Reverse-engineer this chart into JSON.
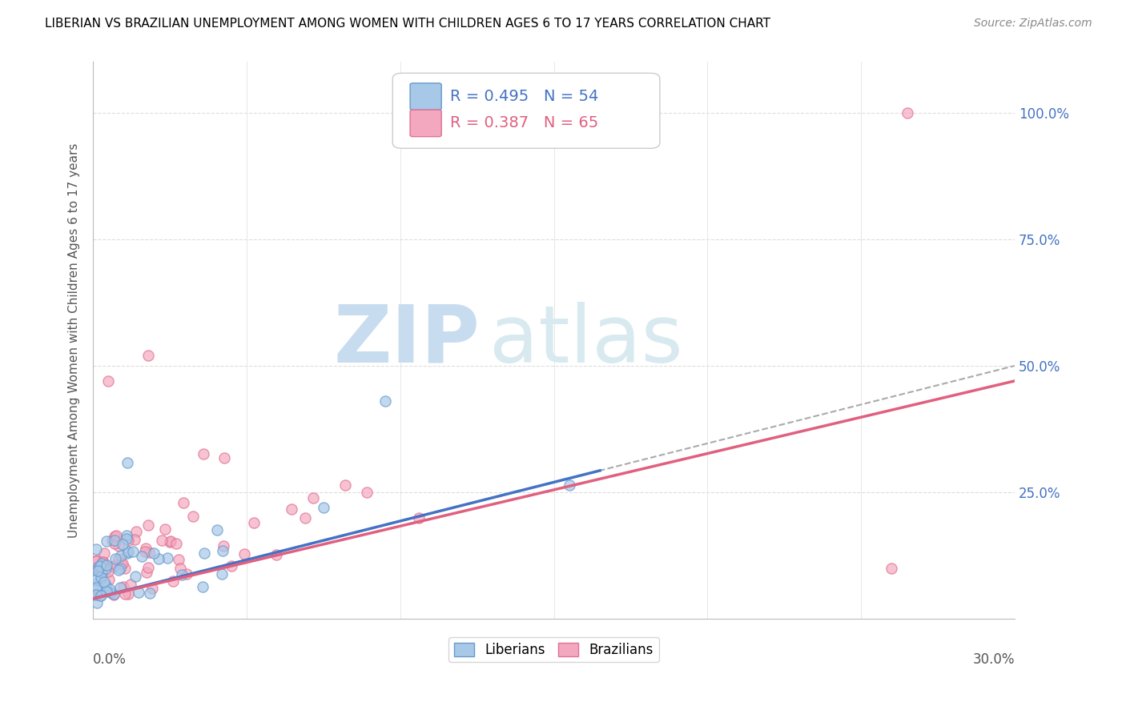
{
  "title": "LIBERIAN VS BRAZILIAN UNEMPLOYMENT AMONG WOMEN WITH CHILDREN AGES 6 TO 17 YEARS CORRELATION CHART",
  "source": "Source: ZipAtlas.com",
  "ylabel": "Unemployment Among Women with Children Ages 6 to 17 years",
  "xlim": [
    0.0,
    0.3
  ],
  "ylim": [
    0.0,
    1.1
  ],
  "liberians_R": 0.495,
  "liberians_N": 54,
  "brazilians_R": 0.387,
  "brazilians_N": 65,
  "liberian_color": "#A8C8E8",
  "liberian_edge": "#6699CC",
  "brazilian_color": "#F4A8C0",
  "brazilian_edge": "#E07090",
  "line_liberian_solid": "#4472C4",
  "line_liberian_dashed": "#AAAAAA",
  "line_brazilian": "#E06080",
  "watermark_zip": "ZIP",
  "watermark_atlas": "atlas",
  "watermark_color": "#D8EAF5",
  "legend_box_color": "#CCCCCC",
  "ytick_color": "#4472C4",
  "xtick_color": "#555555",
  "grid_color": "#DDDDDD",
  "title_fontsize": 11,
  "source_fontsize": 10,
  "tick_label_fontsize": 12,
  "ylabel_fontsize": 11
}
